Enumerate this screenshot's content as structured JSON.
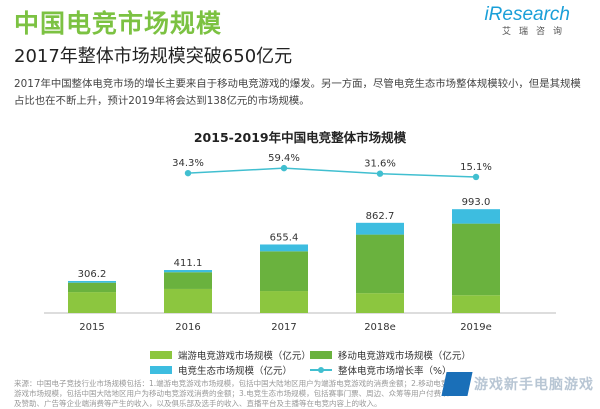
{
  "header": {
    "title": "中国电竞市场规模",
    "logo": "iResearch",
    "logo_sub": "艾瑞咨询"
  },
  "subtitle": "2017年整体市场规模突破650亿元",
  "description": "2017年中国整体电竞市场的增长主要来自于移动电竞游戏的爆发。另一方面，尽管电竞生态市场整体规模较小，但是其规模占比也在不断上升，预计2019年将会达到138亿元的市场规模。",
  "chart_data": {
    "type": "bar",
    "title": "2015-2019年中国电竞整体市场规模",
    "categories": [
      "2015",
      "2016",
      "2017",
      "2018e",
      "2019e"
    ],
    "totals": [
      "306.2",
      "411.1",
      "655.4",
      "862.7",
      "993.0"
    ],
    "series": [
      {
        "name": "端游电竞游戏市场规模（亿元）",
        "color": "#8cc63f",
        "values": [
          200,
          230,
          210,
          190,
          170
        ],
        "stacked": true
      },
      {
        "name": "移动电竞游戏市场规模（亿元）",
        "color": "#6ab23e",
        "values": [
          90,
          160,
          380,
          560,
          685
        ],
        "stacked": true
      },
      {
        "name": "电竞生态市场规模（亿元）",
        "color": "#3dbde0",
        "values": [
          16.2,
          21.1,
          65.4,
          112.7,
          138
        ],
        "stacked": true
      },
      {
        "name": "整体电竞市场增长率（%）",
        "color": "#41bfd0",
        "type": "line",
        "values": [
          null,
          34.3,
          59.4,
          31.6,
          15.1
        ],
        "labels": [
          "",
          "34.3%",
          "59.4%",
          "31.6%",
          "15.1%"
        ]
      }
    ],
    "ylim": [
      0,
      1100
    ],
    "grid": false,
    "legend": "bottom"
  },
  "source": "来源：中国电子竞技行业市场规模包括：1.端游电竞游戏市场规模，包括中国大陆地区用户为端游电竞游戏的消费金额；2.移动电竞游戏市场规模，包括中国大陆地区用户为移动电竞游戏消费的金额；3.电竞生态市场规模，包括赛事门票、周边、众筹等用户付费以及赞助、广告等企业端消费等产生的收入，以及俱乐部及选手的收入、直播平台及主播等在电竞内容上的收入。",
  "watermark": "游戏新手电脑游戏"
}
